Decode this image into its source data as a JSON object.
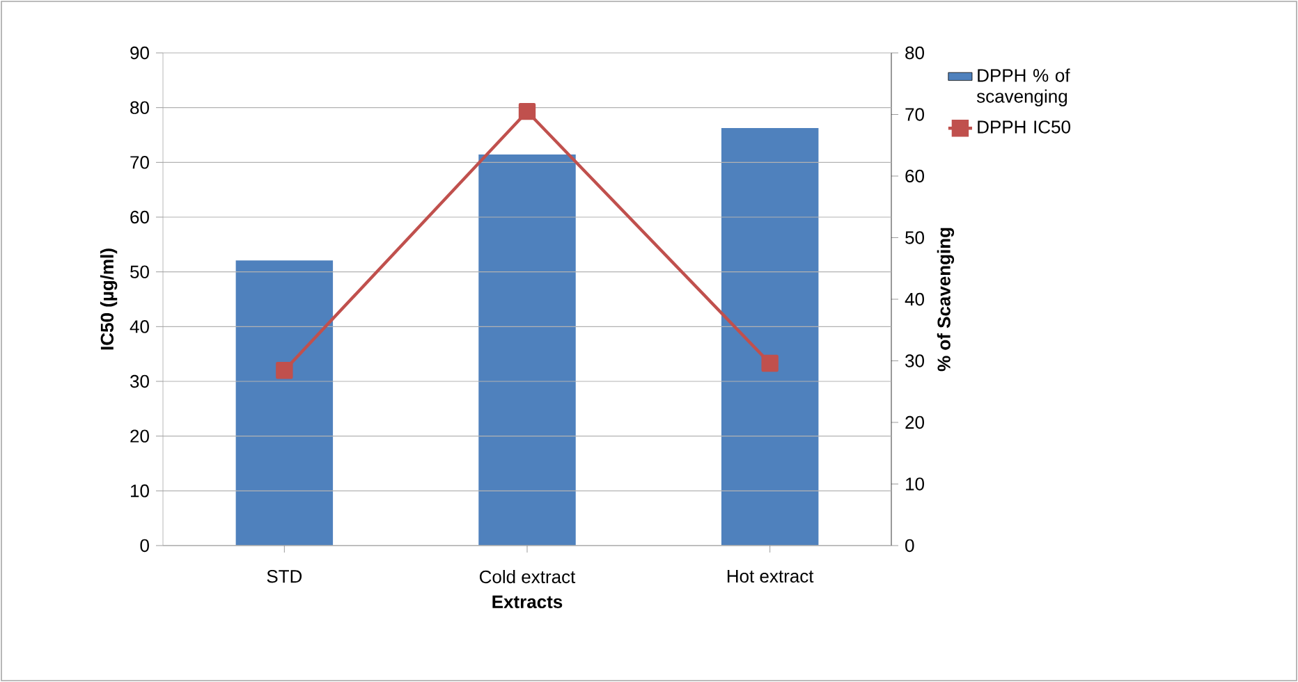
{
  "chart_data": {
    "type": "bar",
    "xlabel": "Extracts",
    "ylabel": "IC50 (µg/ml)",
    "y2label": "% of Scavenging",
    "categories": [
      "STD",
      "Cold extract",
      "Hot extract"
    ],
    "series": [
      {
        "name": "DPPH % of scavenging",
        "color": "#4f81bd",
        "values": [
          46.3,
          63.5,
          67.8
        ],
        "axis": "y2"
      },
      {
        "name": "DPPH IC50",
        "type": "line",
        "color": "#c0504d",
        "values": [
          32.0,
          79.3,
          33.3
        ],
        "marker": "square"
      }
    ],
    "ylim": [
      0,
      90
    ],
    "yticks": [
      0,
      10,
      20,
      30,
      40,
      50,
      60,
      70,
      80,
      90
    ],
    "y2lim": [
      0,
      80
    ],
    "y2ticks": [
      0,
      10,
      20,
      30,
      40,
      50,
      60,
      70,
      80
    ],
    "grid": "y",
    "legend": "right"
  }
}
